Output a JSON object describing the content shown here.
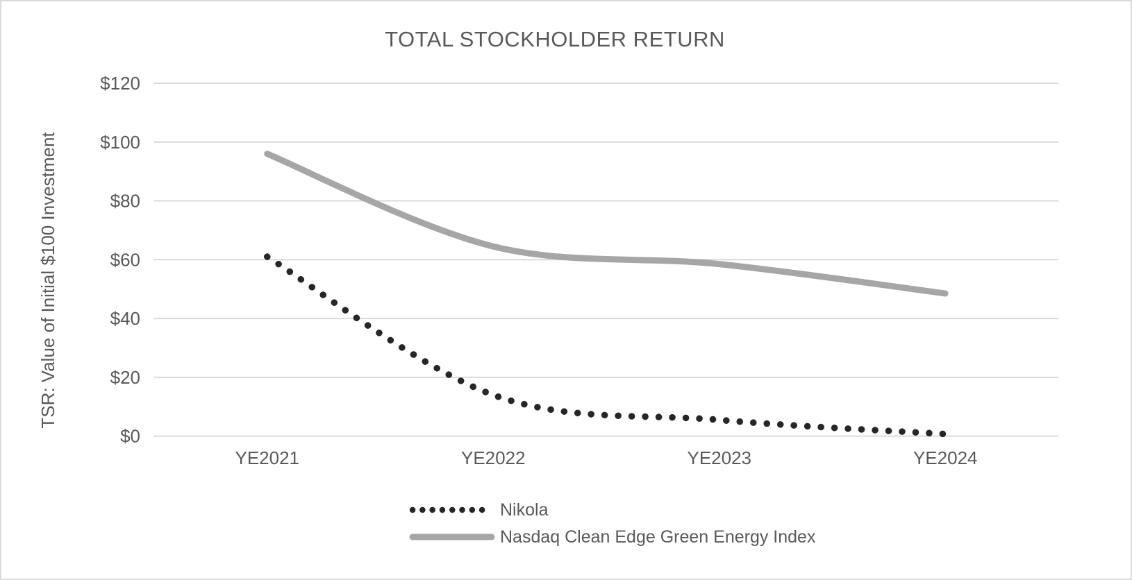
{
  "chart_data": {
    "type": "line",
    "title": "TOTAL STOCKHOLDER RETURN",
    "ylabel": "TSR: Value of Initial $100 Investment",
    "xlabel": "",
    "categories": [
      "YE2021",
      "YE2022",
      "YE2023",
      "YE2024"
    ],
    "series": [
      {
        "name": "Nikola",
        "values": [
          61,
          14,
          5.5,
          0.7
        ],
        "style": "dotted",
        "color": "#262626"
      },
      {
        "name": "Nasdaq Clean Edge Green Energy Index",
        "values": [
          96,
          64.5,
          58.5,
          48.5
        ],
        "style": "solid",
        "color": "#a6a6a6"
      }
    ],
    "ylim": [
      0,
      120
    ],
    "ytick_step": 20,
    "ytick_labels": [
      "$0",
      "$20",
      "$40",
      "$60",
      "$80",
      "$100",
      "$120"
    ],
    "grid": "horizontal-only",
    "legend_position": "bottom",
    "colors": {
      "text": "#595959",
      "gridline": "#d9d9d9",
      "background": "#ffffff",
      "frame_border": "#d9d9d9"
    }
  }
}
